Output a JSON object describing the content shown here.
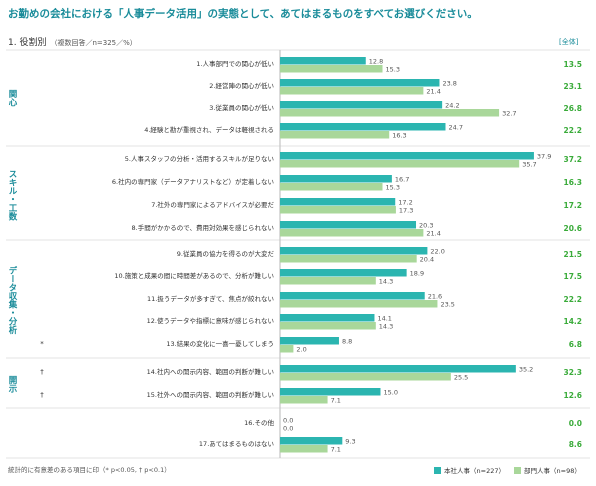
{
  "title": "お勤めの会社における「人事データ活用」の実態として、あてはまるものをすべてお選びください。",
  "section": {
    "label": "1. 役割別",
    "note": "（複数回答／n=325／%）"
  },
  "total_header": "[全体]",
  "footnote": "統計的に有意差のある項目に印（* p<0.05, † p<0.1）",
  "colors": {
    "hq": "#2bb5b0",
    "dept": "#a9d79a",
    "accent": "#1a8c9a",
    "total": "#3aab3a"
  },
  "chart_data": {
    "type": "bar",
    "orientation": "horizontal",
    "xlim": [
      0,
      40
    ],
    "series": [
      {
        "name": "本社人事（n=227）",
        "values": [
          12.8,
          23.8,
          24.2,
          24.7,
          37.9,
          16.7,
          17.2,
          20.3,
          22.0,
          18.9,
          21.6,
          14.1,
          8.8,
          35.2,
          15.0,
          0.0,
          9.3
        ]
      },
      {
        "name": "部門人事（n=98）",
        "values": [
          15.3,
          21.4,
          32.7,
          16.3,
          35.7,
          15.3,
          17.3,
          21.4,
          20.4,
          14.3,
          23.5,
          14.3,
          2.0,
          25.5,
          7.1,
          0.0,
          7.1
        ]
      }
    ],
    "categories": [
      "1.人事部門での関心が低い",
      "2.経営陣の関心が低い",
      "3.従業員の関心が低い",
      "4.経験と勘が重視され、データは軽視される",
      "5.人事スタッフの分析・活用するスキルが足りない",
      "6.社内の専門家（データアナリストなど）が定着しない",
      "7.社外の専門家によるアドバイスが必要だ",
      "8.手間がかかるので、費用対効果を感じられない",
      "9.従業員の協力を得るのが大変だ",
      "10.施策と成果の間に時間差があるので、分析が難しい",
      "11.扱うデータが多すぎて、焦点が絞れない",
      "12.使うデータや指標に意味が感じられない",
      "13.結果の変化に一喜一憂してしまう",
      "14.社内への開示内容、範囲の判断が難しい",
      "15.社外への開示内容、範囲の判断が難しい",
      "16.その他",
      "17.あてはまるものはない"
    ],
    "total": [
      "13.5",
      "23.1",
      "26.8",
      "22.2",
      "37.2",
      "16.3",
      "17.2",
      "20.6",
      "21.5",
      "17.5",
      "22.2",
      "14.2",
      "6.8",
      "32.3",
      "12.6",
      "0.0",
      "8.6"
    ],
    "significance": [
      "",
      "",
      "",
      "",
      "",
      "",
      "",
      "",
      "",
      "",
      "",
      "",
      "*",
      "†",
      "†",
      "",
      ""
    ],
    "groups": [
      {
        "label": "関心",
        "rows": [
          0,
          3
        ]
      },
      {
        "label": "スキル・工数",
        "rows": [
          4,
          7
        ]
      },
      {
        "label": "データ収集・分析",
        "rows": [
          8,
          12
        ]
      },
      {
        "label": "開示",
        "rows": [
          13,
          14
        ]
      }
    ]
  }
}
